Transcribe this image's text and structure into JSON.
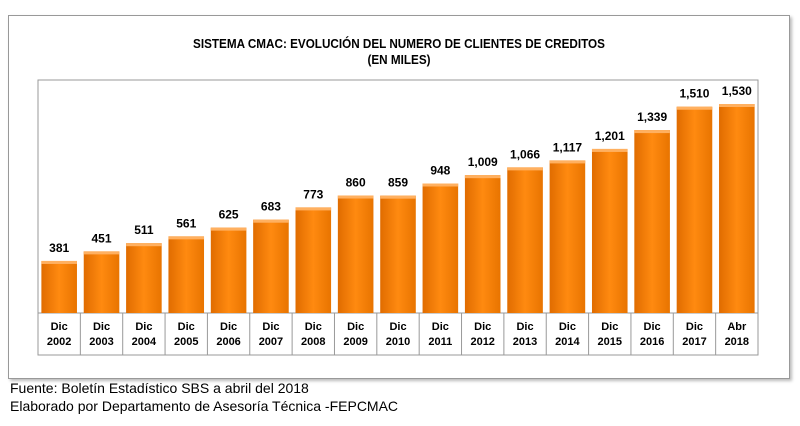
{
  "chart_data": {
    "type": "bar",
    "title": "SISTEMA CMAC: EVOLUCIÓN DEL NUMERO DE CLIENTES DE CREDITOS",
    "subtitle": "(EN MILES)",
    "categories": [
      "Dic 2002",
      "Dic 2003",
      "Dic 2004",
      "Dic 2005",
      "Dic 2006",
      "Dic 2007",
      "Dic 2008",
      "Dic 2009",
      "Dic 2010",
      "Dic 2011",
      "Dic 2012",
      "Dic 2013",
      "Dic 2014",
      "Dic 2015",
      "Dic 2016",
      "Dic 2017",
      "Abr 2018"
    ],
    "values": [
      381,
      451,
      511,
      561,
      625,
      683,
      773,
      860,
      859,
      948,
      1009,
      1066,
      1117,
      1201,
      1339,
      1510,
      1530
    ],
    "value_labels": [
      "381",
      "451",
      "511",
      "561",
      "625",
      "683",
      "773",
      "860",
      "859",
      "948",
      "1,009",
      "1,066",
      "1,117",
      "1,201",
      "1,339",
      "1,510",
      "1,530"
    ],
    "color": "#f07c00"
  },
  "footer": [
    "Fuente: Boletín Estadístico SBS a abril del 2018",
    "Elaborado por Departamento de Asesoría Técnica -FEPCMAC"
  ]
}
